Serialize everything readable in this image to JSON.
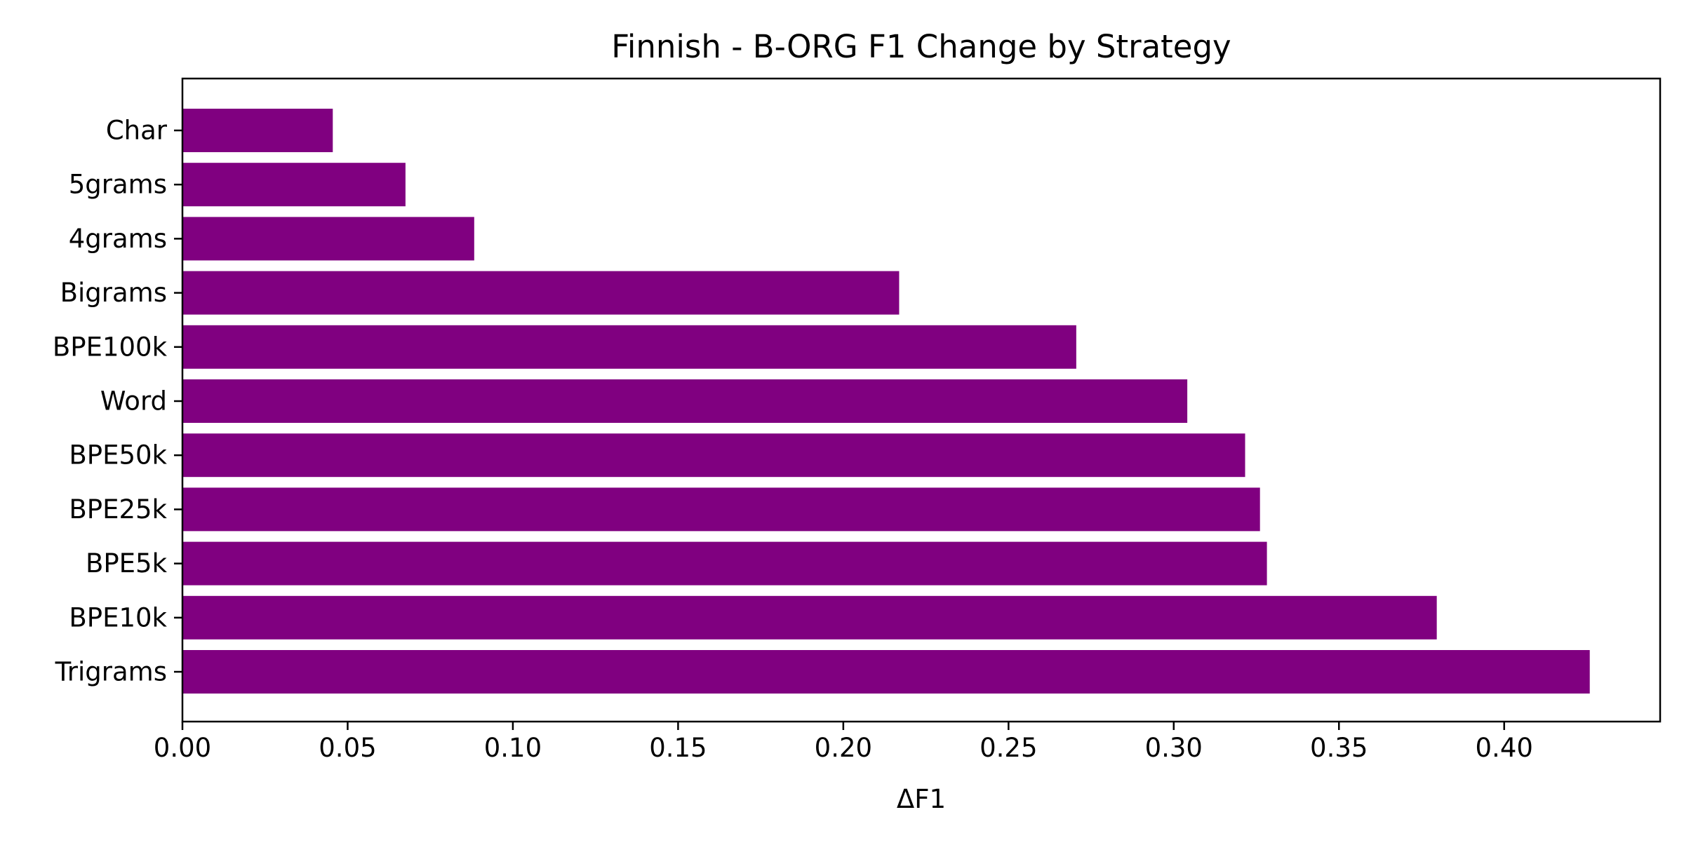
{
  "chart_data": {
    "type": "bar",
    "orientation": "horizontal",
    "title": "Finnish - B-ORG F1 Change by Strategy",
    "xlabel": "ΔF1",
    "ylabel": "",
    "categories": [
      "Char",
      "5grams",
      "4grams",
      "Bigrams",
      "BPE100k",
      "Word",
      "BPE50k",
      "BPE25k",
      "BPE5k",
      "BPE10k",
      "Trigrams"
    ],
    "values": [
      0.0455,
      0.0675,
      0.0883,
      0.2169,
      0.2705,
      0.3041,
      0.3216,
      0.3261,
      0.3282,
      0.3796,
      0.4259
    ],
    "xlim": [
      0,
      0.4472
    ],
    "xticks": [
      "0.00",
      "0.05",
      "0.10",
      "0.15",
      "0.20",
      "0.25",
      "0.30",
      "0.35",
      "0.40"
    ],
    "xtick_values": [
      0,
      0.05,
      0.1,
      0.15,
      0.2,
      0.25,
      0.3,
      0.35,
      0.4
    ],
    "bar_color": "#800080",
    "grid": false,
    "legend": "none"
  }
}
